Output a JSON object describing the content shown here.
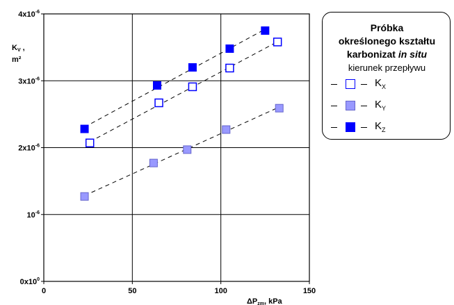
{
  "chart_data": {
    "type": "scatter",
    "xlabel": "ΔP",
    "xlabel_sub": "zm",
    "xlabel_unit": ", kPa",
    "ylabel_line1": "K",
    "ylabel_sub": "V",
    "ylabel_line1_suffix": " ,",
    "ylabel_line2": "m²",
    "xlim": [
      0,
      150
    ],
    "ylim": [
      0,
      4
    ],
    "x_ticks": [
      {
        "value": 0,
        "label": "0"
      },
      {
        "value": 50,
        "label": "50"
      },
      {
        "value": 100,
        "label": "100"
      },
      {
        "value": 150,
        "label": "150"
      }
    ],
    "y_ticks": [
      {
        "value": 0,
        "label": "0x10",
        "exp": "0"
      },
      {
        "value": 1,
        "label": "10",
        "exp": "-6"
      },
      {
        "value": 2,
        "label": "2x10",
        "exp": "-6"
      },
      {
        "value": 3,
        "label": "3x10",
        "exp": "-6"
      },
      {
        "value": 4,
        "label": "4x10",
        "exp": "-6"
      }
    ],
    "y_unit_note": "values in 10^-6 m²",
    "grid": true,
    "legend_placement": "right",
    "series": [
      {
        "name": "K",
        "name_sub": "X",
        "marker": "open-square",
        "color": "#0000ff",
        "x": [
          26,
          65,
          84,
          105,
          132
        ],
        "y": [
          2.07,
          2.67,
          2.91,
          3.19,
          3.58
        ]
      },
      {
        "name": "K",
        "name_sub": "Y",
        "marker": "light-filled-square",
        "color": "#9999ff",
        "x": [
          23,
          62,
          81,
          103,
          133
        ],
        "y": [
          1.27,
          1.77,
          1.97,
          2.27,
          2.59
        ]
      },
      {
        "name": "K",
        "name_sub": "Z",
        "marker": "filled-square",
        "color": "#0000ff",
        "x": [
          23,
          64,
          84,
          105,
          125
        ],
        "y": [
          2.28,
          2.93,
          3.2,
          3.48,
          3.75
        ]
      }
    ]
  },
  "legend": {
    "title_line1": "Próbka",
    "title_line2": "określonego kształtu",
    "title_line3_main": "karbonizat ",
    "title_line3_italic": "in situ",
    "subtitle": "kierunek przepływu",
    "marker_colors": {
      "dark_blue": "#0000ff",
      "light_blue": "#9999ff"
    }
  }
}
